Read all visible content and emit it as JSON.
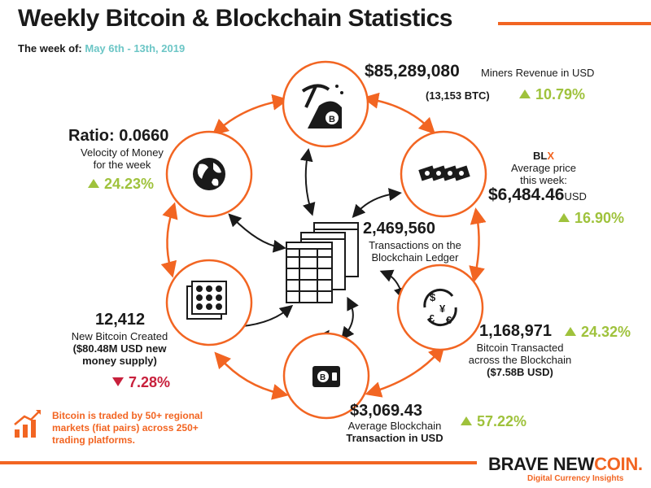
{
  "header": {
    "title": "Weekly Bitcoin & Blockchain Statistics",
    "week_label": "The week of:",
    "week_dates": "May 6th - 13th, 2019"
  },
  "miners": {
    "value": "$85,289,080",
    "label": "Miners Revenue in USD",
    "btc": "(13,153 BTC)",
    "change": "10.79%"
  },
  "price": {
    "blx_prefix": "BL",
    "blx_suffix": "X",
    "label_line1": "Average price",
    "label_line2": "this week:",
    "value": "$6,484.46",
    "unit": "USD",
    "change": "16.90%"
  },
  "transactions": {
    "value": "2,469,560",
    "label_line1": "Transactions on the",
    "label_line2": "Blockchain Ledger"
  },
  "transacted": {
    "value": "1,168,971",
    "change": "24.32%",
    "label_line1": "Bitcoin Transacted",
    "label_line2": "across the Blockchain",
    "usd": "($7.58B USD)"
  },
  "avg_tx": {
    "value": "$3,069.43",
    "label_line1": "Average Blockchain",
    "label_line2": "Transaction in USD",
    "change": "57.22%"
  },
  "new_btc": {
    "value": "12,412",
    "label_line1": "New Bitcoin Created",
    "label_line2": "($80.48M USD new",
    "label_line3": "money supply)",
    "change": "7.28%"
  },
  "velocity": {
    "value": "Ratio: 0.0660",
    "label_line1": "Velocity of Money",
    "label_line2": "for the week",
    "change": "24.23%"
  },
  "note": "Bitcoin is traded by 50+ regional markets (fiat pairs) across 250+ trading platforms.",
  "brand": {
    "name_a": "BRAVE NEW",
    "name_b": "COIN.",
    "tagline": "Digital Currency Insights"
  },
  "colors": {
    "accent": "#f26522",
    "up": "#9fc23c",
    "down": "#c8203c",
    "dates": "#6cc6c6"
  }
}
